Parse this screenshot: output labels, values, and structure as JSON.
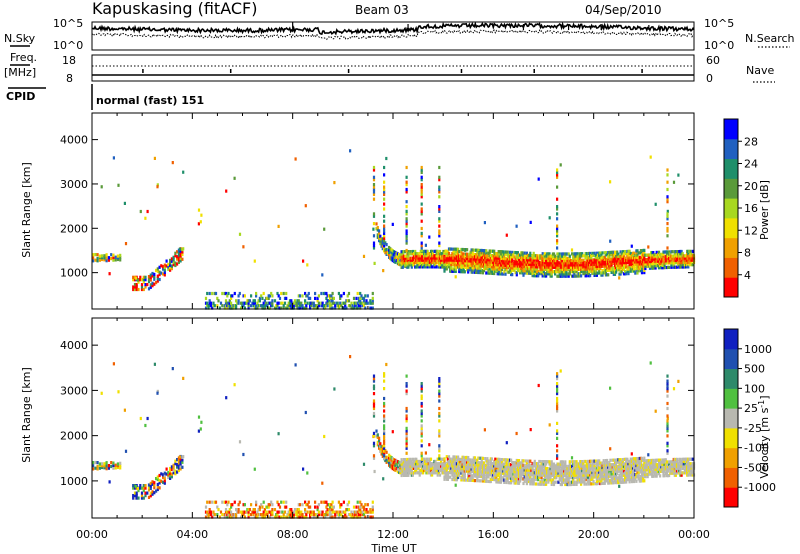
{
  "header": {
    "station": "Kapuskasing (fitACF)",
    "beam": "Beam 03",
    "date": "04/Sep/2010"
  },
  "left_labels": {
    "nsky": "N.Sky",
    "freq": "Freq.",
    "freq_unit": "[MHz]",
    "cpid": "CPID"
  },
  "right_labels": {
    "nsearch": "N.Search",
    "nave": "Nave"
  },
  "cpid_text": "normal (fast) 151",
  "chart_data": [
    {
      "type": "line",
      "name": "noise-panel",
      "y_ticks_left": [
        "10^5",
        "10^0"
      ],
      "y_ticks_right": [
        "10^5",
        "10^0"
      ],
      "series": [
        {
          "name": "N.Sky"
        },
        {
          "name": "N.Search"
        }
      ]
    },
    {
      "type": "line",
      "name": "freq-panel",
      "y_ticks_left": [
        "18",
        "8"
      ],
      "y_ticks_right": [
        "60",
        "0"
      ],
      "ylim_left": [
        8,
        18
      ],
      "ylim_right": [
        0,
        60
      ],
      "series": [
        {
          "name": "Freq."
        },
        {
          "name": "Nave"
        }
      ]
    },
    {
      "type": "heatmap",
      "name": "power-panel",
      "ylabel": "Slant Range [km]",
      "y_ticks": [
        1000,
        2000,
        3000,
        4000
      ],
      "ylim": [
        180,
        4600
      ],
      "colorbar": {
        "label": "Power [dB]",
        "ticks": [
          "28",
          "24",
          "20",
          "16",
          "12",
          "8",
          "4"
        ],
        "colors": [
          "#0000ff",
          "#2060c0",
          "#1f8f6a",
          "#5a9a3a",
          "#a8d820",
          "#f0e000",
          "#f0a000",
          "#f06000",
          "#ff0000"
        ]
      }
    },
    {
      "type": "heatmap",
      "name": "velocity-panel",
      "ylabel": "Slant Range [km]",
      "y_ticks": [
        1000,
        2000,
        3000,
        4000
      ],
      "ylim": [
        180,
        4600
      ],
      "xlabel": "Time UT",
      "x_ticks": [
        "00:00",
        "04:00",
        "08:00",
        "12:00",
        "16:00",
        "20:00",
        "00:00"
      ],
      "colorbar": {
        "label": "Velocity  [m s",
        "label_sup": "-1",
        "label_end": "]",
        "ticks": [
          "1000",
          "500",
          "100",
          "25",
          "-25",
          "-100",
          "-500",
          "-1000"
        ],
        "colors": [
          "#1020c0",
          "#2050b0",
          "#2e8a6a",
          "#50c040",
          "#b8b8b0",
          "#f0e000",
          "#f0a000",
          "#f06000",
          "#ff0000"
        ]
      }
    }
  ]
}
